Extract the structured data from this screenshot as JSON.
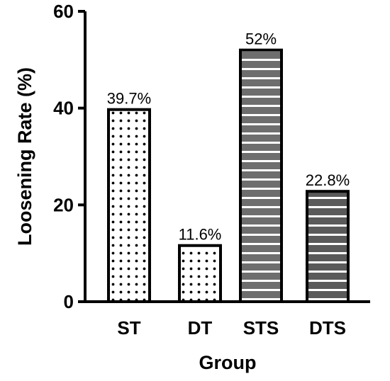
{
  "chart_data": {
    "type": "bar",
    "categories": [
      "ST",
      "DT",
      "STS",
      "DTS"
    ],
    "values": [
      39.7,
      11.6,
      52,
      22.8
    ],
    "data_labels": [
      "39.7%",
      "11.6%",
      "52%",
      "22.8%"
    ],
    "title": "",
    "xlabel": "Group",
    "ylabel": "Loosening Rate (%)",
    "ylim": [
      0,
      60
    ],
    "yticks": [
      0,
      20,
      40,
      60
    ],
    "ytick_labels": [
      "0",
      "20",
      "40",
      "60"
    ],
    "grid": false,
    "legend": "none",
    "bar_patterns": [
      "dots",
      "dots",
      "horizontal-stripes",
      "horizontal-stripes"
    ],
    "colors": {
      "dots_fill": "#ffffff",
      "dots_ink": "#000000",
      "sts_fill": "#6e6e6e",
      "dts_fill": "#5a5a5a",
      "stripe": "#ffffff",
      "outline": "#000000"
    }
  }
}
